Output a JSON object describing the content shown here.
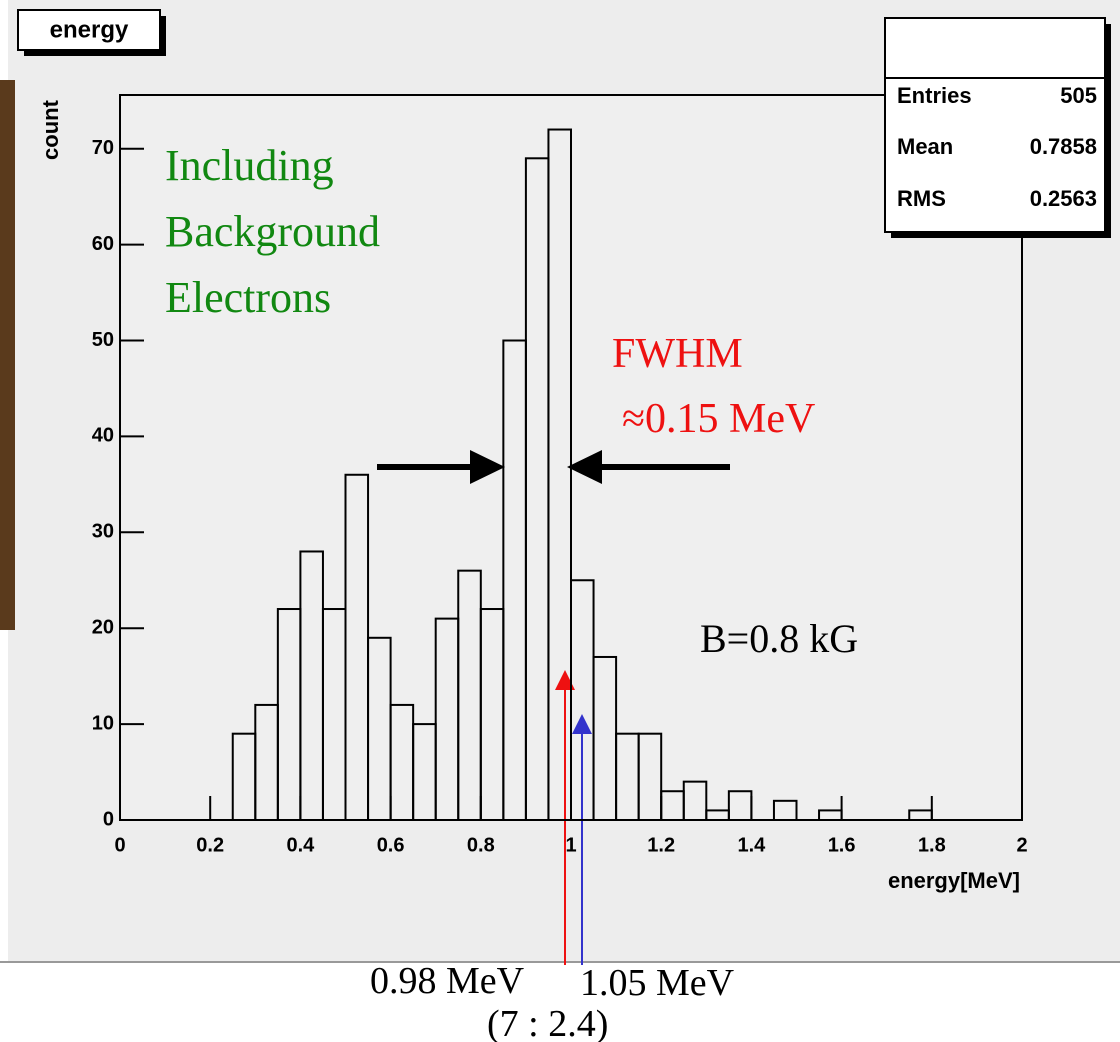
{
  "chart_data": {
    "type": "histogram",
    "title": "energy",
    "x_label": "energy[MeV]",
    "y_label": "count",
    "bins": [
      0,
      0.05,
      0.1,
      0.15,
      0.2,
      0.25,
      0.3,
      0.35,
      0.4,
      0.45,
      0.5,
      0.55,
      0.6,
      0.65,
      0.7,
      0.75,
      0.8,
      0.85,
      0.9,
      0.95,
      1,
      1.05,
      1.1,
      1.15,
      1.2,
      1.25,
      1.3,
      1.35,
      1.4,
      1.45,
      1.5,
      1.55,
      1.6,
      1.65,
      1.7,
      1.75,
      1.8,
      1.85,
      1.9,
      1.95,
      2
    ],
    "values": [
      0,
      0,
      0,
      0,
      0,
      9,
      12,
      22,
      28,
      22,
      36,
      19,
      12,
      10,
      21,
      26,
      22,
      50,
      69,
      72,
      25,
      17,
      9,
      9,
      3,
      4,
      1,
      3,
      0,
      2,
      0,
      1,
      0,
      0,
      0,
      1,
      0,
      0,
      0,
      0
    ],
    "color": "#000000",
    "xlim": [
      0,
      2
    ],
    "xticks": [
      0,
      0.2,
      0.4,
      0.6,
      0.8,
      1,
      1.2,
      1.4,
      1.6,
      1.8,
      2
    ],
    "ylim": [
      0,
      75.6
    ],
    "yticks": [
      0,
      10,
      20,
      30,
      40,
      50,
      60,
      70
    ],
    "grid": false,
    "stats": [
      {
        "label": "Entries",
        "value": 505
      },
      {
        "label": "Mean",
        "value": 0.7858
      },
      {
        "label": "RMS",
        "value": 0.2563
      }
    ],
    "annotations": [
      {
        "text": "Including",
        "color": "#118811"
      },
      {
        "text": "Background",
        "color": "#118811"
      },
      {
        "text": "Electrons",
        "color": "#118811"
      },
      {
        "text": "FWHM",
        "color": "#ee1111"
      },
      {
        "text": "≈0.15 MeV",
        "color": "#ee1111"
      },
      {
        "text": "B=0.8 kG",
        "color": "#000000"
      },
      {
        "text": "0.98 MeV",
        "color": "#000000"
      },
      {
        "text": "1.05 MeV",
        "color": "#000000"
      },
      {
        "text": "(7 : 2.4)",
        "color": "#000000"
      }
    ]
  }
}
